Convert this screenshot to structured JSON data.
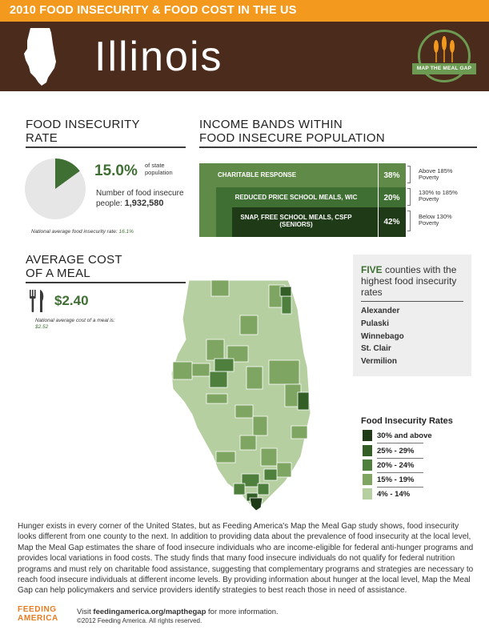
{
  "banner": {
    "title": "2010 FOOD INSECURITY & FOOD COST IN THE US"
  },
  "header": {
    "state": "Illinois",
    "logo_text": "MAP THE MEAL GAP"
  },
  "food_insecurity": {
    "title_line1": "FOOD INSECURITY",
    "title_line2": "RATE",
    "rate": "15.0%",
    "rate_note": "of state population",
    "rate_value": 15.0,
    "count_label": "Number of food insecure people:",
    "count": "1,932,580",
    "national_label": "National average food insecurity rate:",
    "national_value": "16.1%"
  },
  "income_bands": {
    "title_line1": "INCOME BANDS WITHIN",
    "title_line2": "FOOD INSECURE POPULATION",
    "bands": [
      {
        "label": "CHARITABLE RESPONSE",
        "pct": "38%",
        "caption": "Above 185% Poverty"
      },
      {
        "label": "REDUCED PRICE SCHOOL MEALS, WIC",
        "pct": "20%",
        "caption": "130% to 185% Poverty"
      },
      {
        "label": "SNAP, FREE SCHOOL MEALS, CSFP (SENIORS)",
        "pct": "42%",
        "caption": "Below 130% Poverty"
      }
    ]
  },
  "meal_cost": {
    "title_line1": "AVERAGE COST",
    "title_line2": "OF A MEAL",
    "price": "$2.40",
    "note": "National average cost of a meal is:",
    "national": "$2.52"
  },
  "counties": {
    "head_bold": "FIVE",
    "head_rest": "counties with the highest food insecurity rates",
    "list": [
      "Alexander",
      "Pulaski",
      "Winnebago",
      "St. Clair",
      "Vermilion"
    ]
  },
  "legend": {
    "title": "Food Insecurity Rates",
    "items": [
      {
        "label": "30% and above",
        "color": "#1f3a17"
      },
      {
        "label": "25% - 29%",
        "color": "#335f26"
      },
      {
        "label": "20% - 24%",
        "color": "#4e7f3d"
      },
      {
        "label": "15% - 19%",
        "color": "#7ea562"
      },
      {
        "label": "4% - 14%",
        "color": "#b5cfa0"
      }
    ]
  },
  "body": {
    "paragraph": "Hunger exists in every corner of the United States, but as Feeding America's Map the Meal Gap study shows, food insecurity looks different from one county to the next. In addition to providing data about the prevalence of food insecurity at the local level, Map the Meal Gap estimates the share of food insecure individuals who are income-eligible for federal anti-hunger programs and provides local variations in food costs. The study finds that many food insecure individuals do not qualify for federal nutrition programs and must rely on charitable food assistance, suggesting that complementary programs and strategies are necessary to reach food insecure individuals at different income levels. By providing information about hunger at the local level, Map the Meal Gap can help policymakers and service providers identify strategies to best reach those in need of assistance."
  },
  "footer": {
    "logo_top": "FEEDING",
    "logo_bottom": "AMERICA",
    "visit_pre": "Visit",
    "visit_url": "feedingamerica.org/mapthegap",
    "visit_post": "for more information.",
    "copyright": "©2012 Feeding America. All rights reserved."
  },
  "colors": {
    "orange": "#f39a1e",
    "brown": "#4a2b1c",
    "green_dark": "#3f6f33",
    "green_mid": "#5f8a48",
    "green_light": "#b5cfa0"
  }
}
